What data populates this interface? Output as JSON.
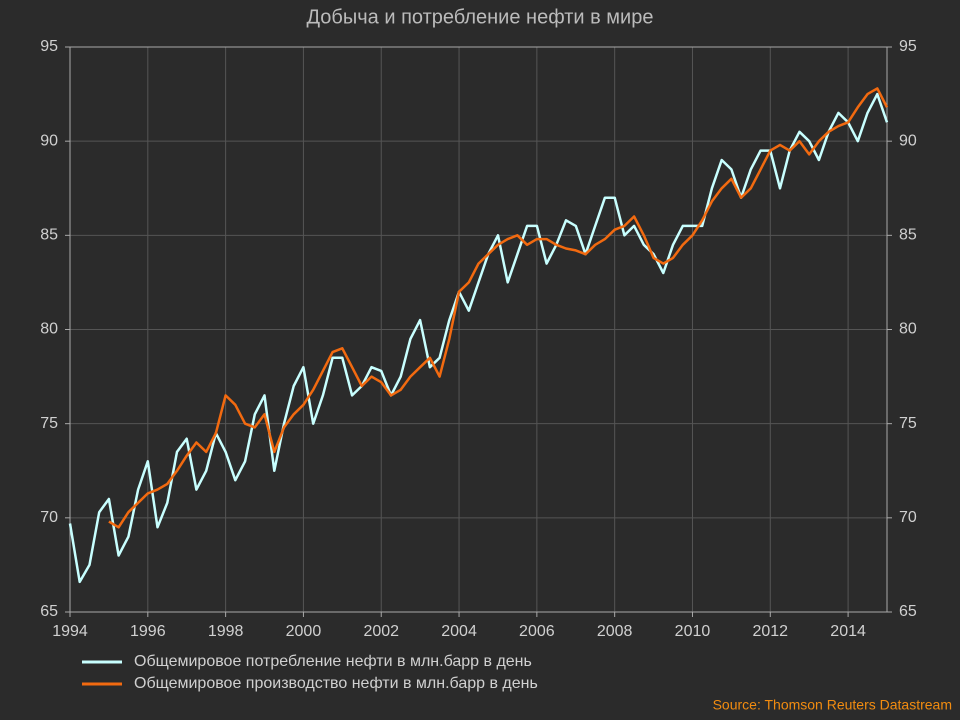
{
  "chart_data": {
    "type": "line",
    "title": "Добыча и потребление нефти в мире",
    "source": "Source: Thomson Reuters Datastream",
    "x": [
      1994,
      1994.25,
      1994.5,
      1994.75,
      1995,
      1995.25,
      1995.5,
      1995.75,
      1996,
      1996.25,
      1996.5,
      1996.75,
      1997,
      1997.25,
      1997.5,
      1997.75,
      1998,
      1998.25,
      1998.5,
      1998.75,
      1999,
      1999.25,
      1999.5,
      1999.75,
      2000,
      2000.25,
      2000.5,
      2000.75,
      2001,
      2001.25,
      2001.5,
      2001.75,
      2002,
      2002.25,
      2002.5,
      2002.75,
      2003,
      2003.25,
      2003.5,
      2003.75,
      2004,
      2004.25,
      2004.5,
      2004.75,
      2005,
      2005.25,
      2005.5,
      2005.75,
      2006,
      2006.25,
      2006.5,
      2006.75,
      2007,
      2007.25,
      2007.5,
      2007.75,
      2008,
      2008.25,
      2008.5,
      2008.75,
      2009,
      2009.25,
      2009.5,
      2009.75,
      2010,
      2010.25,
      2010.5,
      2010.75,
      2011,
      2011.25,
      2011.5,
      2011.75,
      2012,
      2012.25,
      2012.5,
      2012.75,
      2013,
      2013.25,
      2013.5,
      2013.75,
      2014,
      2014.25,
      2014.5,
      2014.75,
      2015
    ],
    "series": [
      {
        "name": "Общемировое потребление нефти в млн.барр в день",
        "color": "#c8ffff",
        "values": [
          69.7,
          66.6,
          67.5,
          70.3,
          71.0,
          68.0,
          69.0,
          71.5,
          73.0,
          69.5,
          70.8,
          73.5,
          74.2,
          71.5,
          72.5,
          74.5,
          73.5,
          72.0,
          73.0,
          75.5,
          76.5,
          72.5,
          75.0,
          77.0,
          78.0,
          75.0,
          76.5,
          78.5,
          78.5,
          76.5,
          77.0,
          78.0,
          77.8,
          76.5,
          77.5,
          79.5,
          80.5,
          78.0,
          78.5,
          80.5,
          82.0,
          81.0,
          82.5,
          84.0,
          85.0,
          82.5,
          84.0,
          85.5,
          85.5,
          83.5,
          84.5,
          85.8,
          85.5,
          84.0,
          85.5,
          87.0,
          87.0,
          85.0,
          85.5,
          84.5,
          84.0,
          83.0,
          84.5,
          85.5,
          85.5,
          85.5,
          87.5,
          89.0,
          88.5,
          87.0,
          88.5,
          89.5,
          89.5,
          87.5,
          89.5,
          90.5,
          90.0,
          89.0,
          90.5,
          91.5,
          91.0,
          90.0,
          91.5,
          92.5,
          91.0
        ]
      },
      {
        "name": "Общемировое производство нефти в млн.барр в день",
        "color": "#f26a10",
        "values": [
          null,
          null,
          null,
          null,
          69.8,
          69.5,
          70.3,
          70.8,
          71.3,
          71.5,
          71.8,
          72.5,
          73.3,
          74.0,
          73.5,
          74.5,
          76.5,
          76.0,
          75.0,
          74.8,
          75.5,
          73.5,
          74.8,
          75.5,
          76.0,
          76.8,
          77.8,
          78.8,
          79.0,
          78.0,
          77.0,
          77.5,
          77.2,
          76.5,
          76.8,
          77.5,
          78.0,
          78.5,
          77.5,
          79.5,
          82.0,
          82.5,
          83.5,
          84.0,
          84.5,
          84.8,
          85.0,
          84.5,
          84.8,
          84.8,
          84.5,
          84.3,
          84.2,
          84.0,
          84.5,
          84.8,
          85.3,
          85.5,
          86.0,
          85.0,
          83.8,
          83.5,
          83.8,
          84.5,
          85.0,
          85.8,
          86.8,
          87.5,
          88.0,
          87.0,
          87.5,
          88.5,
          89.5,
          89.8,
          89.5,
          90.0,
          89.3,
          90.0,
          90.5,
          90.8,
          91.0,
          91.8,
          92.5,
          92.8,
          91.8
        ]
      }
    ],
    "xlim": [
      1994,
      2015
    ],
    "xticks": [
      1994,
      1996,
      1998,
      2000,
      2002,
      2004,
      2006,
      2008,
      2010,
      2012,
      2014
    ],
    "ylim": [
      65,
      95
    ],
    "yticks": [
      65,
      70,
      75,
      80,
      85,
      90,
      95
    ],
    "y2lim": [
      65,
      95
    ],
    "y2ticks": [
      65,
      70,
      75,
      80,
      85,
      90,
      95
    ],
    "grid": true
  }
}
